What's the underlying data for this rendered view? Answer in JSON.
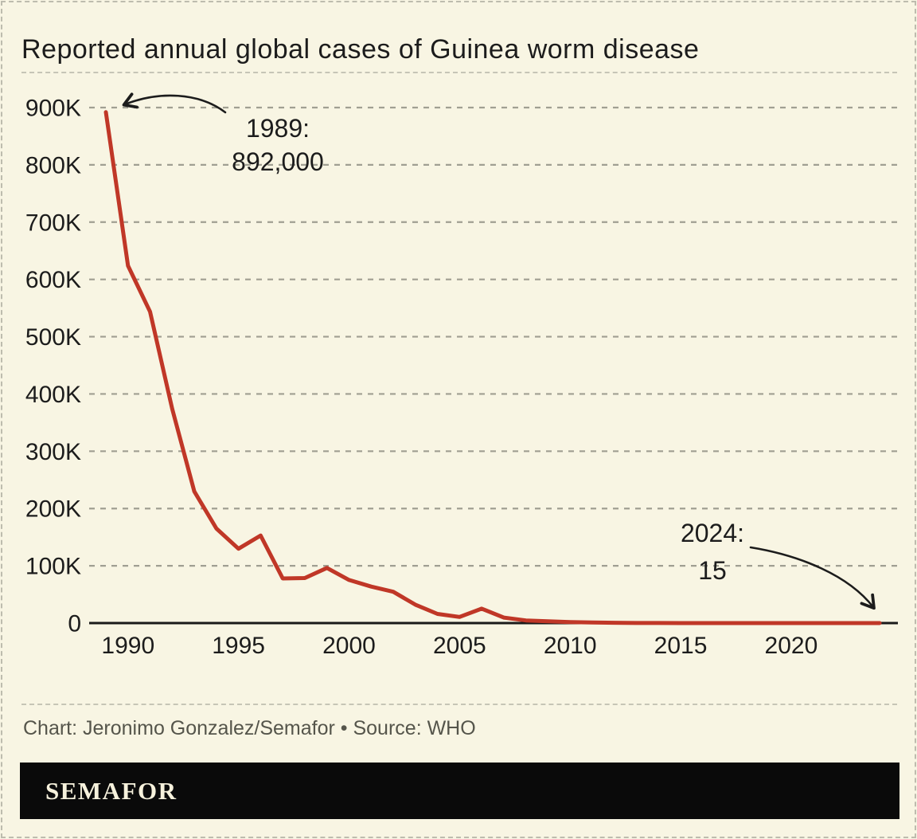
{
  "page": {
    "title": "Reported annual global cases of Guinea worm disease",
    "credit": "Chart: Jeronimo Gonzalez/Semafor • Source: WHO",
    "logo_text": "SEMAFOR"
  },
  "colors": {
    "background": "#F8F5E3",
    "line": "#C03727",
    "axis": "#1A1A1A",
    "grid": "#A09F92",
    "tick_text": "#1C1C1C",
    "annotation_text": "#1C1C1C",
    "arrow": "#1C1C1C",
    "credit_text": "#55554B",
    "logo_bg": "#0A0A0A",
    "logo_fg": "#F6F1DC",
    "page_border": "#BDBCAE"
  },
  "chart_data": {
    "type": "line",
    "title": "Reported annual global cases of Guinea worm disease",
    "x": [
      1989,
      1990,
      1991,
      1992,
      1993,
      1994,
      1995,
      1996,
      1997,
      1998,
      1999,
      2000,
      2001,
      2002,
      2003,
      2004,
      2005,
      2006,
      2007,
      2008,
      2009,
      2010,
      2011,
      2012,
      2013,
      2014,
      2015,
      2016,
      2017,
      2018,
      2019,
      2020,
      2021,
      2022,
      2023,
      2024
    ],
    "values": [
      892055,
      623844,
      543585,
      374202,
      229773,
      164973,
      129852,
      152814,
      77863,
      78557,
      96293,
      75223,
      63718,
      54638,
      32193,
      16026,
      10674,
      25217,
      9585,
      4619,
      3190,
      1797,
      1058,
      542,
      148,
      126,
      22,
      25,
      30,
      28,
      54,
      27,
      15,
      13,
      14,
      15
    ],
    "series_name": "Reported cases",
    "xlabel": "",
    "ylabel": "",
    "x_ticks": [
      1990,
      1995,
      2000,
      2005,
      2010,
      2015,
      2020
    ],
    "y_ticks": [
      {
        "value": 0,
        "label": "0"
      },
      {
        "value": 100000,
        "label": "100K"
      },
      {
        "value": 200000,
        "label": "200K"
      },
      {
        "value": 300000,
        "label": "300K"
      },
      {
        "value": 400000,
        "label": "400K"
      },
      {
        "value": 500000,
        "label": "500K"
      },
      {
        "value": 600000,
        "label": "600K"
      },
      {
        "value": 700000,
        "label": "700K"
      },
      {
        "value": 800000,
        "label": "800K"
      },
      {
        "value": 900000,
        "label": "900K"
      }
    ],
    "xlim": [
      1989,
      2024
    ],
    "ylim": [
      0,
      900000
    ],
    "grid": "horizontal-dashed",
    "legend": "none",
    "annotations": [
      {
        "lines": [
          "1989:",
          "892,000"
        ],
        "year": 1989,
        "value": 892055
      },
      {
        "lines": [
          "2024:",
          "15"
        ],
        "year": 2024,
        "value": 15
      }
    ]
  }
}
